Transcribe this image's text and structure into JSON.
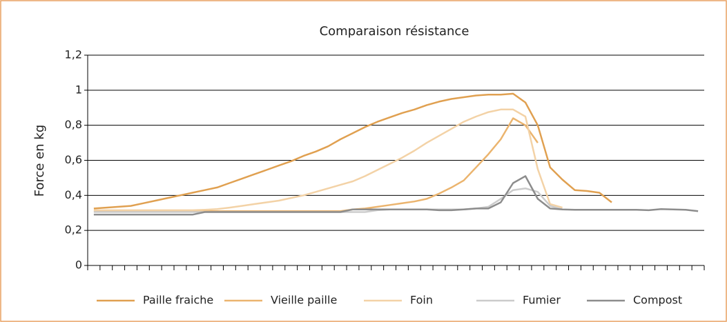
{
  "chart_data": {
    "type": "line",
    "title": "Comparaison résistance",
    "y_label": "Force en kg",
    "categories": [
      null,
      null,
      null,
      null,
      null,
      null,
      null,
      null,
      null,
      null,
      null,
      null,
      null,
      null,
      null,
      null,
      null,
      null,
      null,
      null,
      null,
      null,
      null,
      null,
      null,
      null,
      null,
      null,
      null,
      null,
      null,
      null,
      null,
      null,
      null,
      null,
      null,
      null,
      null,
      null,
      null,
      null,
      null,
      null,
      null,
      null,
      null,
      null,
      null,
      null
    ],
    "ylim": [
      0,
      1.2
    ],
    "yticks": [
      0,
      {
        "value": 0.2,
        "label": "0,2"
      },
      {
        "value": 0.4,
        "label": "0,4"
      },
      {
        "value": 0.6,
        "label": "0,6"
      },
      {
        "value": 0.8,
        "label": "0,8"
      },
      1,
      {
        "value": 1.2,
        "label": "1,2"
      }
    ],
    "grid": true,
    "legend": "bottom",
    "series": [
      {
        "name": "Paille fraiche",
        "color": "#e0a050",
        "values": [
          0.325,
          0.33,
          0.335,
          0.34,
          0.355,
          0.37,
          0.385,
          0.4,
          0.415,
          0.43,
          0.445,
          0.47,
          0.495,
          0.52,
          0.545,
          0.57,
          0.595,
          0.625,
          0.65,
          0.68,
          0.72,
          0.755,
          0.79,
          0.82,
          0.845,
          0.87,
          0.89,
          0.915,
          0.935,
          0.95,
          0.96,
          0.97,
          0.975,
          0.975,
          0.98,
          0.93,
          0.8,
          0.56,
          0.49,
          0.43,
          0.425,
          0.415,
          0.36,
          null,
          null,
          null,
          null,
          null,
          null,
          null
        ]
      },
      {
        "name": "Vieille paille",
        "color": "#ebb46e",
        "values": [
          0.31,
          0.31,
          0.31,
          0.31,
          0.31,
          0.31,
          0.31,
          0.31,
          0.31,
          0.31,
          0.31,
          0.31,
          0.31,
          0.31,
          0.31,
          0.31,
          0.31,
          0.31,
          0.31,
          0.31,
          0.31,
          0.32,
          0.325,
          0.335,
          0.345,
          0.355,
          0.365,
          0.38,
          0.41,
          0.445,
          0.485,
          0.56,
          0.635,
          0.72,
          0.84,
          0.8,
          0.7,
          null,
          null,
          null,
          null,
          null,
          null,
          null,
          null,
          null,
          null,
          null,
          null,
          null
        ]
      },
      {
        "name": "Foin",
        "color": "#f3d2a6",
        "values": [
          0.315,
          0.315,
          0.315,
          0.315,
          0.315,
          0.315,
          0.315,
          0.315,
          0.315,
          0.318,
          0.322,
          0.33,
          0.34,
          0.35,
          0.36,
          0.37,
          0.385,
          0.4,
          0.42,
          0.44,
          0.46,
          0.48,
          0.51,
          0.545,
          0.58,
          0.615,
          0.655,
          0.7,
          0.74,
          0.78,
          0.82,
          0.85,
          0.875,
          0.89,
          0.89,
          0.85,
          0.55,
          0.35,
          0.33,
          null,
          null,
          null,
          null,
          null,
          null,
          null,
          null,
          null,
          null,
          null
        ]
      },
      {
        "name": "Fumier",
        "color": "#cbcbcb",
        "values": [
          0.305,
          0.305,
          0.305,
          0.305,
          0.305,
          0.305,
          0.305,
          0.305,
          0.305,
          0.305,
          0.305,
          0.305,
          0.305,
          0.305,
          0.305,
          0.305,
          0.305,
          0.305,
          0.305,
          0.305,
          0.305,
          0.305,
          0.305,
          0.315,
          0.32,
          0.32,
          0.32,
          0.32,
          0.32,
          0.32,
          0.32,
          0.325,
          0.335,
          0.38,
          0.43,
          0.44,
          0.42,
          0.34,
          0.32,
          null,
          null,
          null,
          null,
          null,
          null,
          null,
          null,
          null,
          null,
          null
        ]
      },
      {
        "name": "Compost",
        "color": "#8c8c8c",
        "values": [
          0.29,
          0.29,
          0.29,
          0.29,
          0.29,
          0.29,
          0.29,
          0.29,
          0.29,
          0.305,
          0.305,
          0.305,
          0.305,
          0.305,
          0.305,
          0.305,
          0.305,
          0.305,
          0.305,
          0.305,
          0.305,
          0.32,
          0.32,
          0.32,
          0.32,
          0.32,
          0.32,
          0.32,
          0.315,
          0.315,
          0.32,
          0.325,
          0.325,
          0.36,
          0.47,
          0.51,
          0.38,
          0.325,
          0.32,
          0.318,
          0.318,
          0.318,
          0.318,
          0.318,
          0.318,
          0.315,
          0.322,
          0.32,
          0.318,
          0.31
        ]
      }
    ]
  }
}
